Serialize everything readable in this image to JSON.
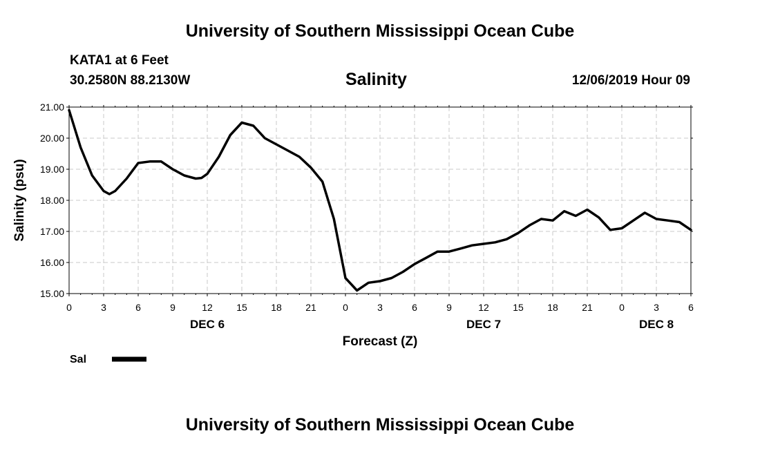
{
  "header": {
    "top_title": "University of Southern Mississippi Ocean Cube",
    "station": "KATA1 at 6 Feet",
    "coords": "30.2580N 88.2130W",
    "variable": "Salinity",
    "timestamp": "12/06/2019 Hour 09"
  },
  "footer": {
    "bottom_title": "University of Southern Mississippi Ocean Cube"
  },
  "chart_data": {
    "type": "line",
    "title": "Salinity",
    "xlabel": "Forecast (Z)",
    "ylabel": "Salinity (psu)",
    "ylim": [
      15.0,
      21.0
    ],
    "xlim_hours": [
      0,
      54
    ],
    "grid": true,
    "legend_position": "bottom-left",
    "y_ticks": [
      "15.00",
      "16.00",
      "17.00",
      "18.00",
      "19.00",
      "20.00",
      "21.00"
    ],
    "x_tick_labels": [
      "0",
      "3",
      "6",
      "9",
      "12",
      "15",
      "18",
      "21",
      "0",
      "3",
      "6",
      "9",
      "12",
      "15",
      "18",
      "21",
      "0",
      "3",
      "6"
    ],
    "day_labels": [
      {
        "label": "DEC 6",
        "hour": 12
      },
      {
        "label": "DEC 7",
        "hour": 36
      },
      {
        "label": "DEC 8",
        "hour": 51
      }
    ],
    "series": [
      {
        "name": "Sal",
        "color": "#000000",
        "x": [
          0,
          1,
          2,
          3,
          3.5,
          4,
          5,
          6,
          7,
          8,
          9,
          10,
          11,
          11.5,
          12,
          13,
          14,
          15,
          16,
          17,
          18,
          19,
          20,
          21,
          22,
          23,
          24,
          25,
          26,
          27,
          28,
          29,
          30,
          31,
          32,
          33,
          34,
          35,
          36,
          37,
          38,
          39,
          40,
          41,
          42,
          43,
          44,
          45,
          46,
          47,
          48,
          49,
          50,
          51,
          52,
          53,
          54
        ],
        "values": [
          20.9,
          19.7,
          18.8,
          18.3,
          18.2,
          18.3,
          18.7,
          19.2,
          19.25,
          19.25,
          19.0,
          18.8,
          18.7,
          18.72,
          18.85,
          19.4,
          20.1,
          20.5,
          20.4,
          20.0,
          19.8,
          19.6,
          19.4,
          19.05,
          18.6,
          17.4,
          15.5,
          15.1,
          15.35,
          15.4,
          15.5,
          15.7,
          15.95,
          16.15,
          16.35,
          16.35,
          16.45,
          16.55,
          16.6,
          16.65,
          16.75,
          16.95,
          17.2,
          17.4,
          17.35,
          17.65,
          17.5,
          17.7,
          17.45,
          17.05,
          17.1,
          17.35,
          17.6,
          17.4,
          17.35,
          17.3,
          17.05
        ]
      }
    ]
  }
}
